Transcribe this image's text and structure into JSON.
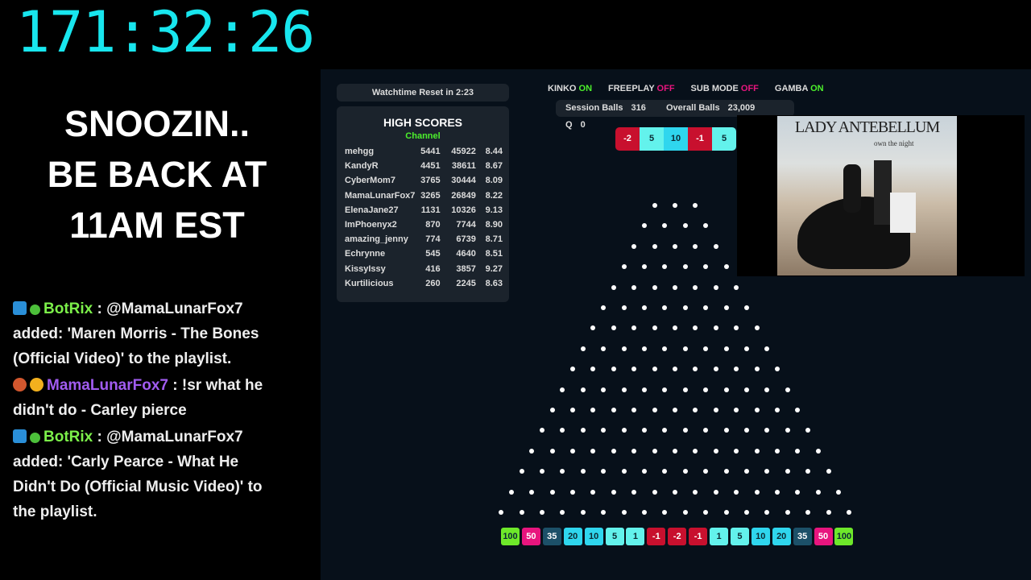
{
  "timer": "171:32:26",
  "status_lines": [
    "SNOOZIN..",
    "BE BACK AT",
    "11AM EST"
  ],
  "chat": [
    {
      "user": "BotRix",
      "text": ": @MamaLunarFox7 added: 'Maren Morris - The Bones (Official Video)' to the playlist."
    },
    {
      "user": "MamaLunarFox7",
      "text": ": !sr what he didn't do - Carley pierce"
    },
    {
      "user": "BotRix",
      "text": ": @MamaLunarFox7 added: 'Carly Pearce - What He Didn't Do (Official Music Video)' to the playlist."
    }
  ],
  "watchtime": "Watchtime Reset in  2:23",
  "high_scores": {
    "title": "HIGH SCORES",
    "subtitle": "Channel",
    "rows": [
      [
        "mehgg",
        "5441",
        "45922",
        "8.44"
      ],
      [
        "KandyR",
        "4451",
        "38611",
        "8.67"
      ],
      [
        "CyberMom7",
        "3765",
        "30444",
        "8.09"
      ],
      [
        "MamaLunarFox7",
        "3265",
        "26849",
        "8.22"
      ],
      [
        "ElenaJane27",
        "1131",
        "10326",
        "9.13"
      ],
      [
        "ImPhoenyx2",
        "870",
        "7744",
        "8.90"
      ],
      [
        "amazing_jenny",
        "774",
        "6739",
        "8.71"
      ],
      [
        "Echrynne",
        "545",
        "4640",
        "8.51"
      ],
      [
        "KissyIssy",
        "416",
        "3857",
        "9.27"
      ],
      [
        "Kurtilicious",
        "260",
        "2245",
        "8.63"
      ]
    ]
  },
  "flags": [
    {
      "label": "KINKO",
      "state": "ON"
    },
    {
      "label": "FREEPLAY",
      "state": "OFF"
    },
    {
      "label": "SUB MODE",
      "state": "OFF"
    },
    {
      "label": "GAMBA",
      "state": "ON"
    }
  ],
  "balls": {
    "session_label": "Session Balls",
    "session": "316",
    "overall_label": "Overall Balls",
    "overall": "23,009",
    "q_label": "Q",
    "q": "0"
  },
  "recent": [
    "-2",
    "5",
    "10",
    "-1",
    "5"
  ],
  "slots": [
    "100",
    "50",
    "35",
    "20",
    "10",
    "5",
    "1",
    "-1",
    "-2",
    "-1",
    "1",
    "5",
    "10",
    "20",
    "35",
    "50",
    "100"
  ],
  "slot_colors": {
    "100": "#6ee82a",
    "50": "#e8157e",
    "35": "#1c5068",
    "20": "#2fd6ee",
    "10": "#2fd6ee",
    "5": "#63f2ec",
    "1": "#63f2ec",
    "-1": "#c8102e",
    "-2": "#c8102e"
  },
  "album": {
    "artist": "LADY ANTEBELLUM",
    "title": "own the night"
  }
}
